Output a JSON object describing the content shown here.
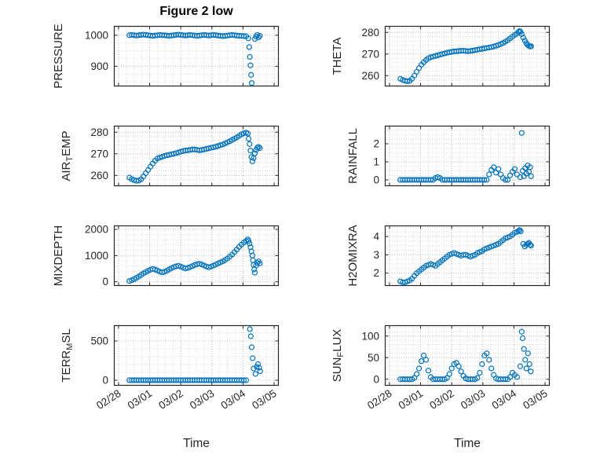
{
  "figure": {
    "title": "Figure 2 low",
    "xlabel": "Time",
    "marker_color": "#0072BD",
    "axis_color": "#262626",
    "grid_minor_color": "#d8d8d8",
    "grid_major_color": "#bdbdbd",
    "xlim": [
      -0.15,
      5.15
    ],
    "x_minor_step": 0.25,
    "x_ticks": {
      "values": [
        0,
        1,
        2,
        3,
        4,
        5
      ],
      "labels": [
        "02/28",
        "03/01",
        "03/02",
        "03/03",
        "03/04",
        "03/05"
      ]
    }
  },
  "chart_data": {
    "type": "scatter",
    "marker": "open-circle",
    "x_unit": "days since 02/28",
    "x_base": [
      0.35,
      0.425,
      0.5,
      0.575,
      0.65,
      0.725,
      0.8,
      0.875,
      0.95,
      1.025,
      1.1,
      1.175,
      1.25,
      1.325,
      1.4,
      1.475,
      1.55,
      1.625,
      1.7,
      1.775,
      1.85,
      1.925,
      2.0,
      2.075,
      2.15,
      2.225,
      2.3,
      2.375,
      2.45,
      2.525,
      2.6,
      2.675,
      2.75,
      2.825,
      2.9,
      2.975,
      3.05,
      3.125,
      3.2,
      3.275,
      3.35,
      3.425,
      3.5,
      3.575,
      3.65,
      3.725,
      3.8,
      3.875,
      3.95,
      4.025,
      4.1
    ],
    "subplots": [
      {
        "id": "pressure",
        "name": "PRESSURE",
        "ylabel": {
          "pre": "PRESSURE",
          "sub": "",
          "post": ""
        },
        "row": 0,
        "col": 0,
        "ylim": [
          835,
          1030
        ],
        "yticks": [
          900,
          1000
        ],
        "y_minor_step": 25,
        "y_base": [
          1000,
          1001,
          1000,
          999,
          1000,
          1001,
          1002,
          1001,
          1000,
          999,
          998,
          999,
          1000,
          1001,
          1000,
          1000,
          999,
          998,
          999,
          1000,
          1001,
          1002,
          1001,
          1000,
          999,
          1000,
          1001,
          1000,
          999,
          998,
          999,
          1000,
          1001,
          1000,
          999,
          1000,
          1001,
          1000,
          999,
          998,
          997,
          998,
          999,
          1000,
          1001,
          1000,
          999,
          998,
          998,
          997,
          997
        ],
        "extra_points": [
          [
            4.17,
            990
          ],
          [
            4.2,
            962
          ],
          [
            4.22,
            930
          ],
          [
            4.24,
            903
          ],
          [
            4.26,
            872
          ],
          [
            4.28,
            846
          ],
          [
            4.38,
            988
          ],
          [
            4.42,
            996
          ],
          [
            4.46,
            1001
          ],
          [
            4.5,
            993
          ],
          [
            4.54,
            998
          ]
        ]
      },
      {
        "id": "theta",
        "name": "THETA",
        "ylabel": {
          "pre": "THETA",
          "sub": "",
          "post": ""
        },
        "row": 0,
        "col": 1,
        "ylim": [
          255,
          283
        ],
        "yticks": [
          260,
          270,
          280
        ],
        "y_minor_step": 2,
        "y_base": [
          258.5,
          258,
          257.6,
          257.4,
          257.6,
          258.5,
          260,
          261.8,
          263.5,
          265,
          266.2,
          267.2,
          268,
          268.5,
          268.8,
          269.1,
          269.4,
          269.7,
          270,
          270.3,
          270.6,
          270.8,
          271,
          271.2,
          271.3,
          271.4,
          271.5,
          271.5,
          271.4,
          271.3,
          271.4,
          271.6,
          271.8,
          272,
          272.2,
          272.4,
          272.6,
          272.8,
          273,
          273.2,
          273.5,
          273.8,
          274.2,
          274.6,
          275.1,
          275.7,
          276.4,
          277.2,
          278,
          278.8,
          279.5
        ],
        "extra_points": [
          [
            4.15,
            280.2
          ],
          [
            4.18,
            280.6
          ],
          [
            4.21,
            280.3
          ],
          [
            4.25,
            279.2
          ],
          [
            4.3,
            277.6
          ],
          [
            4.35,
            276.2
          ],
          [
            4.4,
            275
          ],
          [
            4.44,
            274.2
          ],
          [
            4.48,
            273.8
          ],
          [
            4.52,
            273.5
          ],
          [
            4.55,
            273.6
          ]
        ]
      },
      {
        "id": "air-temp",
        "name": "AIR_TEMP",
        "ylabel": {
          "pre": "AIR",
          "sub": "T",
          "post": "EMP"
        },
        "row": 1,
        "col": 0,
        "ylim": [
          255,
          283
        ],
        "yticks": [
          260,
          270,
          280
        ],
        "y_minor_step": 2,
        "y_base": [
          259,
          258.3,
          257.8,
          257.5,
          257.6,
          258.2,
          259.5,
          261,
          262.5,
          264,
          265.5,
          266.8,
          267.8,
          268.3,
          268.6,
          269,
          269.3,
          269.5,
          269.8,
          270,
          270.3,
          270.6,
          271,
          271.3,
          271.5,
          271.6,
          271.8,
          272,
          272,
          271.8,
          271.6,
          271.8,
          272,
          272.3,
          272.5,
          272.8,
          273,
          273.3,
          273.6,
          274,
          274.3,
          274.8,
          275.3,
          275.8,
          276.4,
          277,
          277.6,
          278.3,
          279,
          279.5,
          279.8
        ],
        "extra_points": [
          [
            4.15,
            279.4
          ],
          [
            4.18,
            277
          ],
          [
            4.21,
            274.5
          ],
          [
            4.24,
            271.5
          ],
          [
            4.27,
            268.5
          ],
          [
            4.3,
            266.5
          ],
          [
            4.34,
            268
          ],
          [
            4.38,
            270.2
          ],
          [
            4.42,
            271.8
          ],
          [
            4.46,
            272.8
          ],
          [
            4.5,
            273.2
          ],
          [
            4.54,
            272.6
          ]
        ]
      },
      {
        "id": "rainfall",
        "name": "RAINFALL",
        "ylabel": {
          "pre": "RAINFALL",
          "sub": "",
          "post": ""
        },
        "row": 1,
        "col": 1,
        "ylim": [
          -0.35,
          3.0
        ],
        "yticks": [
          0,
          1,
          2
        ],
        "y_minor_step": 0.25,
        "y_base": [
          0,
          0,
          0,
          0,
          0,
          0,
          0,
          0,
          0,
          0,
          0,
          0,
          0,
          0,
          0,
          0.1,
          0.15,
          0.1,
          0,
          0,
          0,
          0,
          0,
          0,
          0,
          0,
          0,
          0,
          0,
          0,
          0,
          0,
          0,
          0,
          0,
          0,
          0,
          0,
          0.3,
          0.55,
          0.7,
          0.4,
          0.6,
          0.3,
          0.1,
          0,
          0,
          0.25,
          0.45,
          0.6,
          0.3
        ],
        "extra_points": [
          [
            4.2,
            0.15
          ],
          [
            4.25,
            2.6
          ],
          [
            4.28,
            0.5
          ],
          [
            4.32,
            0.2
          ],
          [
            4.36,
            0.65
          ],
          [
            4.4,
            0.35
          ],
          [
            4.44,
            0.8
          ],
          [
            4.48,
            0.45
          ],
          [
            4.52,
            0.7
          ],
          [
            4.55,
            0.2
          ]
        ]
      },
      {
        "id": "mixdepth",
        "name": "MIXDEPTH",
        "ylabel": {
          "pre": "MIXDEPTH",
          "sub": "",
          "post": ""
        },
        "row": 2,
        "col": 0,
        "ylim": [
          -160,
          2150
        ],
        "yticks": [
          0,
          1000,
          2000
        ],
        "y_minor_step": 200,
        "y_base": [
          30,
          60,
          100,
          150,
          200,
          260,
          320,
          370,
          420,
          460,
          490,
          470,
          430,
          390,
          360,
          380,
          420,
          470,
          520,
          560,
          590,
          610,
          580,
          540,
          510,
          530,
          560,
          600,
          640,
          670,
          690,
          660,
          620,
          580,
          550,
          580,
          620,
          660,
          700,
          740,
          780,
          830,
          890,
          960,
          1040,
          1130,
          1230,
          1330,
          1420,
          1500,
          1560
        ],
        "extra_points": [
          [
            4.15,
            1620
          ],
          [
            4.18,
            1560
          ],
          [
            4.21,
            1460
          ],
          [
            4.24,
            1320
          ],
          [
            4.27,
            1160
          ],
          [
            4.3,
            1000
          ],
          [
            4.32,
            820
          ],
          [
            4.34,
            640
          ],
          [
            4.36,
            470
          ],
          [
            4.38,
            350
          ],
          [
            4.42,
            620
          ],
          [
            4.46,
            720
          ],
          [
            4.5,
            780
          ],
          [
            4.54,
            700
          ]
        ]
      },
      {
        "id": "h2omixra",
        "name": "H2OMIXRA",
        "ylabel": {
          "pre": "H2OMIXRA",
          "sub": "",
          "post": ""
        },
        "row": 2,
        "col": 1,
        "ylim": [
          1.3,
          4.6
        ],
        "yticks": [
          2,
          3,
          4
        ],
        "y_minor_step": 0.25,
        "y_base": [
          1.55,
          1.5,
          1.5,
          1.55,
          1.6,
          1.7,
          1.85,
          2.0,
          2.1,
          2.2,
          2.3,
          2.4,
          2.45,
          2.5,
          2.45,
          2.4,
          2.5,
          2.6,
          2.7,
          2.8,
          2.9,
          3.0,
          3.05,
          3.1,
          3.05,
          3.0,
          2.95,
          3.0,
          3.0,
          2.95,
          2.9,
          2.95,
          3.0,
          3.1,
          3.15,
          3.2,
          3.3,
          3.35,
          3.4,
          3.45,
          3.5,
          3.55,
          3.6,
          3.7,
          3.8,
          3.9,
          3.95,
          4.0,
          4.1,
          4.2,
          4.25
        ],
        "extra_points": [
          [
            4.15,
            4.3
          ],
          [
            4.18,
            4.35
          ],
          [
            4.22,
            4.28
          ],
          [
            4.3,
            3.6
          ],
          [
            4.35,
            3.45
          ],
          [
            4.4,
            3.55
          ],
          [
            4.44,
            3.6
          ],
          [
            4.48,
            3.65
          ],
          [
            4.52,
            3.55
          ],
          [
            4.55,
            3.5
          ]
        ]
      },
      {
        "id": "terr-msl",
        "name": "TERR_MSL",
        "ylabel": {
          "pre": "TERR",
          "sub": "M",
          "post": "SL"
        },
        "row": 3,
        "col": 0,
        "ylim": [
          -70,
          700
        ],
        "yticks": [
          0,
          500
        ],
        "y_minor_step": 100,
        "y_base": [
          0,
          0,
          0,
          0,
          0,
          0,
          0,
          0,
          0,
          0,
          0,
          0,
          0,
          0,
          0,
          0,
          0,
          0,
          0,
          0,
          0,
          0,
          0,
          0,
          0,
          0,
          0,
          0,
          0,
          0,
          0,
          0,
          0,
          0,
          0,
          0,
          0,
          0,
          0,
          0,
          0,
          0,
          0,
          0,
          0,
          0,
          0,
          0,
          0,
          0,
          0
        ],
        "extra_points": [
          [
            4.22,
            650
          ],
          [
            4.25,
            560
          ],
          [
            4.28,
            420
          ],
          [
            4.31,
            280
          ],
          [
            4.34,
            150
          ],
          [
            4.4,
            80
          ],
          [
            4.44,
            170
          ],
          [
            4.48,
            205
          ],
          [
            4.52,
            160
          ],
          [
            4.55,
            115
          ]
        ]
      },
      {
        "id": "sun-flux",
        "name": "SUN_FLUX",
        "ylabel": {
          "pre": "SUN",
          "sub": "F",
          "post": "LUX"
        },
        "row": 3,
        "col": 1,
        "ylim": [
          -15,
          125
        ],
        "yticks": [
          0,
          50,
          100
        ],
        "y_minor_step": 10,
        "y_base": [
          0,
          0,
          0,
          0,
          0,
          0,
          3,
          12,
          25,
          42,
          55,
          45,
          20,
          5,
          0,
          0,
          0,
          0,
          0,
          0,
          3,
          12,
          25,
          35,
          38,
          30,
          18,
          8,
          2,
          0,
          0,
          0,
          0,
          3,
          15,
          35,
          55,
          60,
          45,
          25,
          10,
          2,
          0,
          0,
          0,
          0,
          0,
          5,
          15,
          10,
          5
        ],
        "extra_points": [
          [
            4.2,
            30
          ],
          [
            4.25,
            110
          ],
          [
            4.28,
            95
          ],
          [
            4.32,
            70
          ],
          [
            4.36,
            45
          ],
          [
            4.4,
            25
          ],
          [
            4.45,
            60
          ],
          [
            4.5,
            35
          ],
          [
            4.54,
            18
          ]
        ]
      }
    ]
  }
}
